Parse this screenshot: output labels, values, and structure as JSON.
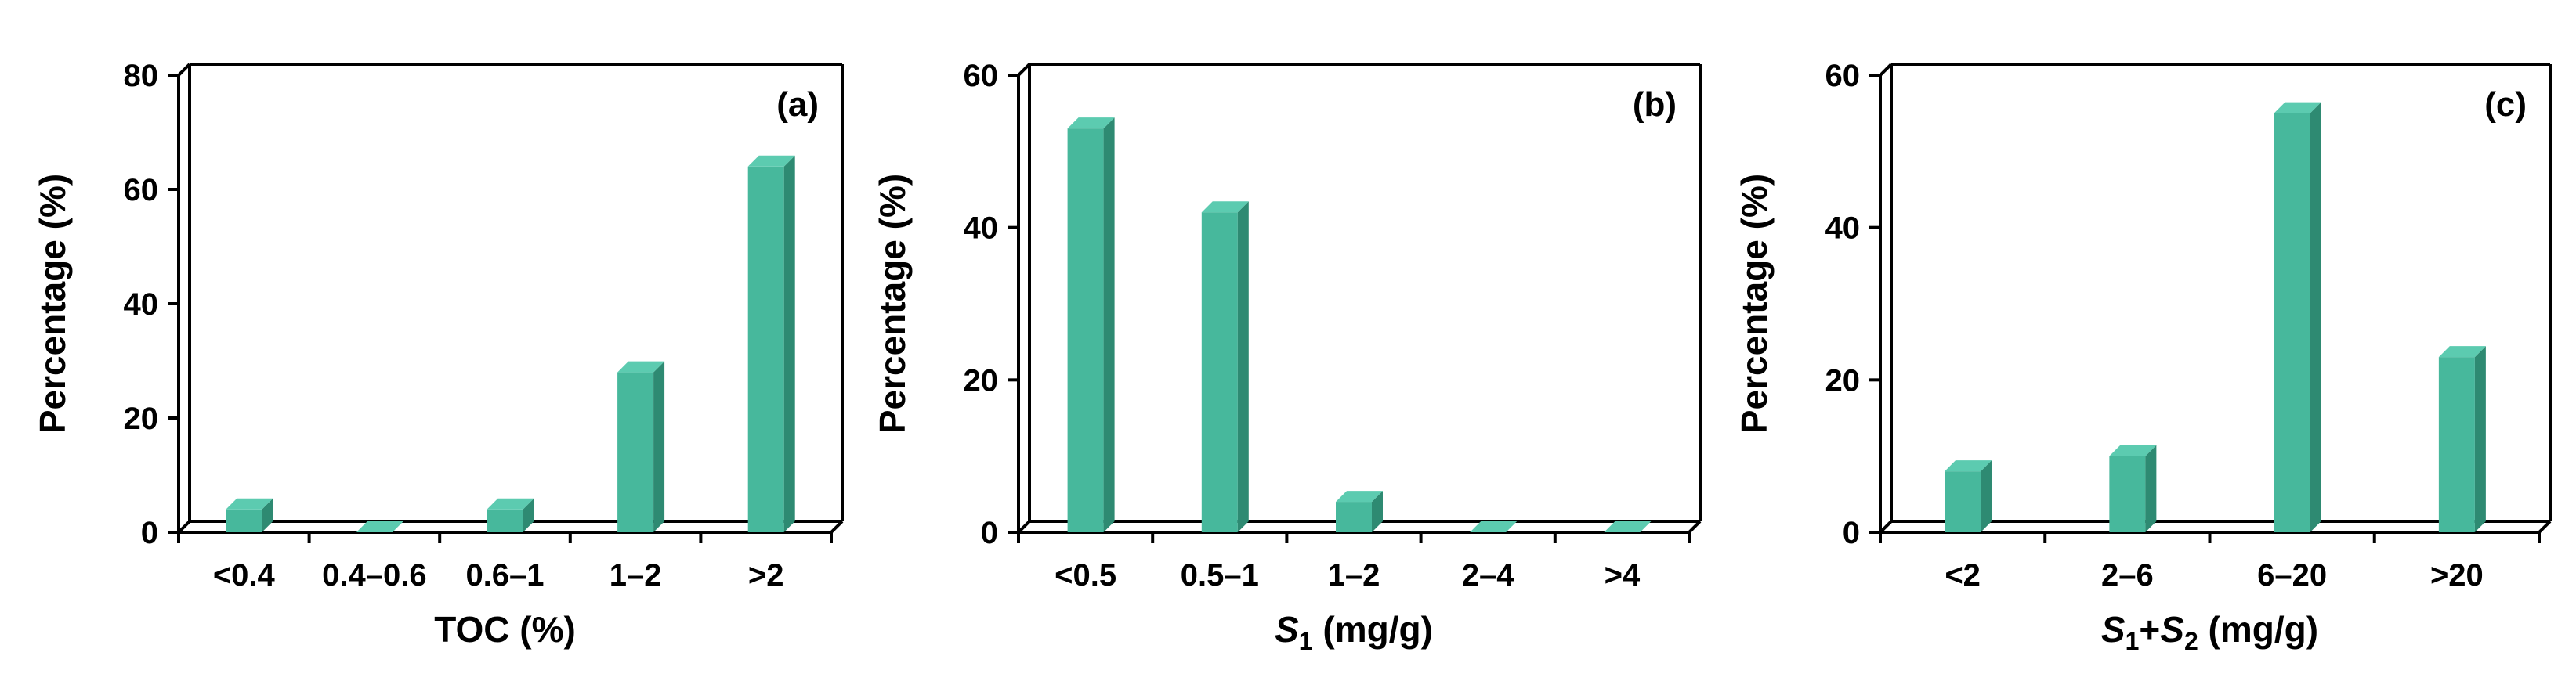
{
  "colors": {
    "bar_front": "#47B89C",
    "bar_side": "#2E8A72",
    "bar_top": "#5CCBB0",
    "axis": "#000000"
  },
  "chart_data": [
    {
      "type": "bar",
      "panel": "(a)",
      "ylabel": "Percentage (%)",
      "xlabel_parts": [
        {
          "text": "TOC (%)",
          "italic": false,
          "sub": false
        }
      ],
      "ylim": [
        0,
        80
      ],
      "yticks": [
        0,
        20,
        40,
        60,
        80
      ],
      "categories": [
        "<0.4",
        "0.4–0.6",
        "0.6–1",
        "1–2",
        ">2"
      ],
      "values": [
        4,
        0,
        4,
        28,
        64
      ]
    },
    {
      "type": "bar",
      "panel": "(b)",
      "ylabel": "Percentage (%)",
      "xlabel_parts": [
        {
          "text": "S",
          "italic": true,
          "sub": false
        },
        {
          "text": "1",
          "italic": false,
          "sub": true
        },
        {
          "text": " (mg/g)",
          "italic": false,
          "sub": false
        }
      ],
      "ylim": [
        0,
        60
      ],
      "yticks": [
        0,
        20,
        40,
        60
      ],
      "categories": [
        "<0.5",
        "0.5–1",
        "1–2",
        "2–4",
        ">4"
      ],
      "values": [
        53,
        42,
        4,
        0,
        0
      ]
    },
    {
      "type": "bar",
      "panel": "(c)",
      "ylabel": "Percentage (%)",
      "xlabel_parts": [
        {
          "text": "S",
          "italic": true,
          "sub": false
        },
        {
          "text": "1",
          "italic": false,
          "sub": true
        },
        {
          "text": "+",
          "italic": false,
          "sub": false
        },
        {
          "text": "S",
          "italic": true,
          "sub": false
        },
        {
          "text": "2",
          "italic": false,
          "sub": true
        },
        {
          "text": " (mg/g)",
          "italic": false,
          "sub": false
        }
      ],
      "ylim": [
        0,
        60
      ],
      "yticks": [
        0,
        20,
        40,
        60
      ],
      "categories": [
        "<2",
        "2–6",
        "6–20",
        ">20"
      ],
      "values": [
        8,
        10,
        55,
        23
      ]
    }
  ]
}
